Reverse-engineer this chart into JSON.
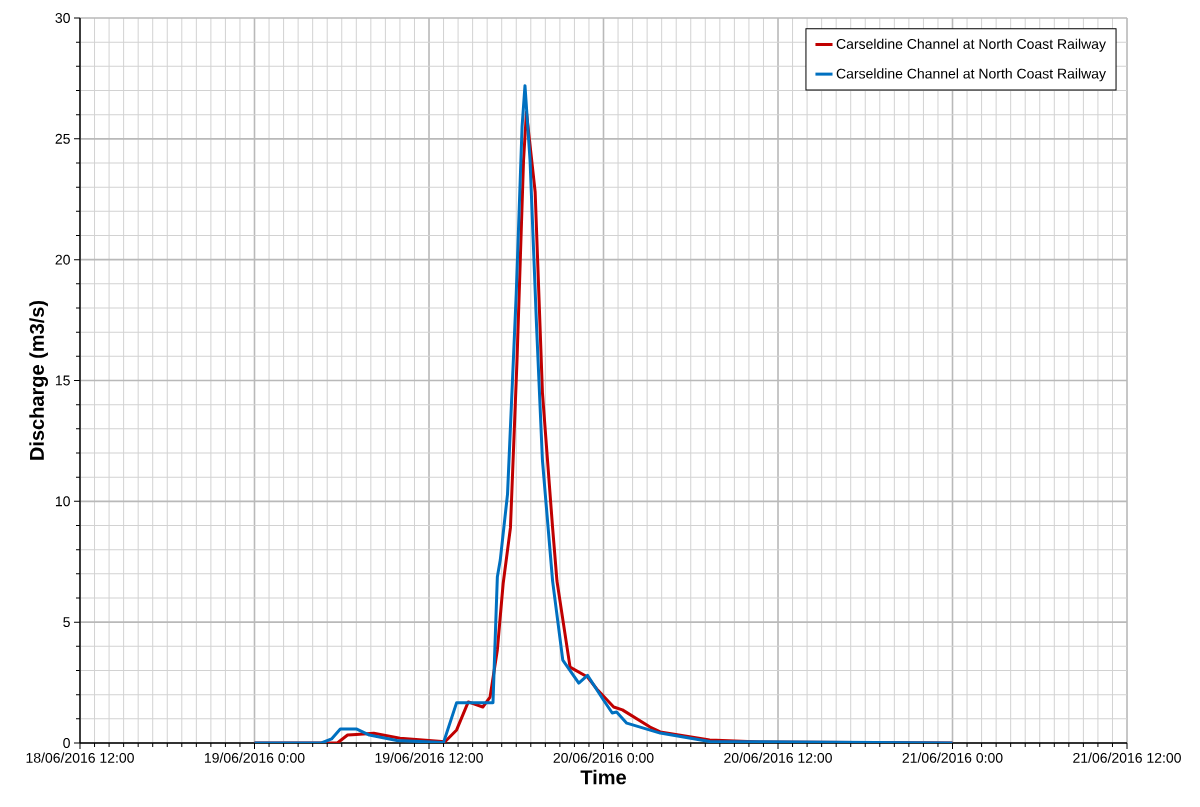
{
  "chart_data": {
    "type": "line",
    "xlabel": "Time",
    "ylabel": "Discharge (m3/s)",
    "xlim": [
      "2016-06-18T12:00",
      "2016-06-21T12:00"
    ],
    "xticks": [
      {
        "value": "2016-06-18T12:00",
        "label": "18/06/2016 12:00"
      },
      {
        "value": "2016-06-19T00:00",
        "label": "19/06/2016 0:00"
      },
      {
        "value": "2016-06-19T12:00",
        "label": "19/06/2016 12:00"
      },
      {
        "value": "2016-06-20T00:00",
        "label": "20/06/2016 0:00"
      },
      {
        "value": "2016-06-20T12:00",
        "label": "20/06/2016 12:00"
      },
      {
        "value": "2016-06-21T00:00",
        "label": "21/06/2016 0:00"
      },
      {
        "value": "2016-06-21T12:00",
        "label": "21/06/2016 12:00"
      }
    ],
    "ylim": [
      0,
      30
    ],
    "yticks": [
      0,
      5,
      10,
      15,
      20,
      25,
      30
    ],
    "grid": true,
    "legend": "top right",
    "series": [
      {
        "name": "Carseldine Channel at North Coast Railway",
        "color": "#c00000",
        "x": [
          "2016-06-19T00:00",
          "2016-06-19T05:42",
          "2016-06-19T06:24",
          "2016-06-19T07:00",
          "2016-06-19T08:12",
          "2016-06-19T10:00",
          "2016-06-19T13:06",
          "2016-06-19T13:54",
          "2016-06-19T14:42",
          "2016-06-19T15:42",
          "2016-06-19T16:12",
          "2016-06-19T16:42",
          "2016-06-19T17:06",
          "2016-06-19T17:36",
          "2016-06-19T18:03",
          "2016-06-19T18:30",
          "2016-06-19T18:42",
          "2016-06-19T19:18",
          "2016-06-19T19:48",
          "2016-06-19T20:30",
          "2016-06-19T20:48",
          "2016-06-19T21:42",
          "2016-06-19T22:54",
          "2016-06-19T23:36",
          "2016-06-20T00:42",
          "2016-06-20T01:18",
          "2016-06-20T03:12",
          "2016-06-20T03:54",
          "2016-06-20T07:18",
          "2016-06-20T10:48",
          "2016-06-21T00:00"
        ],
        "values": [
          0,
          0,
          0.33,
          0.35,
          0.4,
          0.2,
          0.05,
          0.54,
          1.7,
          1.49,
          1.9,
          3.85,
          6.6,
          8.9,
          15.8,
          24.1,
          26.1,
          22.8,
          14.5,
          8.9,
          6.7,
          3.14,
          2.73,
          2.19,
          1.49,
          1.37,
          0.66,
          0.46,
          0.12,
          0.04,
          0
        ]
      },
      {
        "name": "Carseldine Channel at North Coast Railway",
        "color": "#0070c0",
        "x": [
          "2016-06-19T00:00",
          "2016-06-19T04:36",
          "2016-06-19T05:18",
          "2016-06-19T05:54",
          "2016-06-19T07:00",
          "2016-06-19T07:54",
          "2016-06-19T09:48",
          "2016-06-19T13:00",
          "2016-06-19T13:54",
          "2016-06-19T16:24",
          "2016-06-19T16:42",
          "2016-06-19T16:54",
          "2016-06-19T17:24",
          "2016-06-19T18:00",
          "2016-06-19T18:24",
          "2016-06-19T18:36",
          "2016-06-19T18:57",
          "2016-06-19T19:24",
          "2016-06-19T19:48",
          "2016-06-19T20:30",
          "2016-06-19T21:12",
          "2016-06-19T22:18",
          "2016-06-19T22:54",
          "2016-06-20T00:00",
          "2016-06-20T00:36",
          "2016-06-20T00:54",
          "2016-06-20T01:36",
          "2016-06-20T03:54",
          "2016-06-20T07:18",
          "2016-06-21T00:00"
        ],
        "values": [
          0,
          0,
          0.17,
          0.58,
          0.58,
          0.33,
          0.1,
          0.02,
          1.67,
          1.67,
          6.87,
          7.57,
          10.3,
          18.6,
          25.5,
          27.2,
          24.1,
          17.2,
          11.7,
          6.7,
          3.43,
          2.48,
          2.8,
          1.78,
          1.24,
          1.28,
          0.82,
          0.41,
          0.06,
          0
        ]
      }
    ]
  }
}
